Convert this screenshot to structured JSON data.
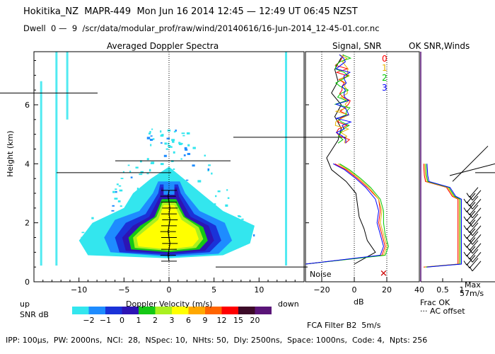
{
  "header": {
    "line1": "Hokitika_NZ  MAPR-449  Mon Jun 16 2014 12:45 — 12:49 UT 06:45 NZST",
    "line2": "Dwell  0 —  9  /scr/data/modular_prof/raw/wind/20140616/16-Jun-2014_12-45-01.cor.nc"
  },
  "footer": {
    "params": "IPP: 100μs,  PW: 2000ns,  NCI:  28,  NSpec: 10,  NHts: 50,  Dly: 2500ns,  Space: 1000ns,  Code: 4,  Npts: 256",
    "fca": "FCA Filter B2  5m/s"
  },
  "colorbar": {
    "label": "SNR dB",
    "ticks": [
      "−2",
      "−1",
      "0",
      "1",
      "2",
      "3",
      "6",
      "9",
      "12",
      "15",
      "20"
    ],
    "colors": [
      "#33e6ee",
      "#1e8cff",
      "#1a32d8",
      "#2d14b4",
      "#14c814",
      "#aaf020",
      "#ffff00",
      "#ffa800",
      "#ff6400",
      "#ff0000",
      "#3c0a28",
      "#5a1478"
    ]
  },
  "chart_data": [
    {
      "type": "heatmap",
      "title": "Averaged Doppler Spectra",
      "xlabel": "Doppler Velocity (m/s)",
      "ylabel": "Height (km)",
      "x_ticks": [
        "−10",
        "−5",
        "0",
        "5",
        "10"
      ],
      "y_ticks": [
        "0",
        "2",
        "4",
        "6"
      ],
      "xlim": [
        -15,
        15
      ],
      "ylim": [
        0,
        7.8
      ],
      "left_note": "up",
      "right_note": "down",
      "mean_velocity_profile": {
        "height_km": [
          0.7,
          0.9,
          1.1,
          1.3,
          1.5,
          1.7,
          1.9,
          2.1,
          2.3,
          2.5,
          2.7,
          2.9,
          3.1
        ],
        "velocity_ms": [
          0.0,
          -0.1,
          0.0,
          0.1,
          0.0,
          -0.1,
          0.0,
          0.1,
          0.0,
          0.1,
          0.0,
          -0.1,
          0.0
        ]
      }
    },
    {
      "type": "line",
      "title": "Signal, SNR",
      "xlabel": "dB",
      "x_ticks": [
        "−20",
        "0",
        "20",
        "40"
      ],
      "xlim": [
        -30,
        40
      ],
      "noise_label": "Noise",
      "legend": [
        "0",
        "1",
        "2",
        "3"
      ],
      "legend_colors": [
        "#ff0000",
        "#e6b400",
        "#00c800",
        "#0000ff"
      ],
      "series": [
        {
          "name": "Signal",
          "color": "#000000",
          "height_km": [
            0.6,
            1.0,
            1.4,
            1.8,
            2.2,
            2.6,
            3.0,
            3.4,
            3.8,
            4.2,
            4.8,
            5.2,
            5.6,
            6.0,
            6.4,
            6.8,
            7.2,
            7.6
          ],
          "db": [
            0,
            13,
            8,
            6,
            3,
            2,
            1,
            -5,
            -14,
            -17,
            -10,
            -8,
            -12,
            -8,
            -14,
            -10,
            -12,
            -8
          ]
        },
        {
          "name": "SNR 0",
          "color": "#ff0000",
          "height_km": [
            0.6,
            0.9,
            1.2,
            1.6,
            2.0,
            2.4,
            2.8,
            3.2,
            3.5,
            3.8,
            4.0
          ],
          "db": [
            -30,
            17,
            19,
            17,
            15,
            16,
            15,
            8,
            2,
            -5,
            -12
          ]
        },
        {
          "name": "SNR 1",
          "color": "#e6b400",
          "height_km": [
            0.6,
            0.9,
            1.2,
            1.6,
            2.0,
            2.4,
            2.8,
            3.2,
            3.5,
            3.8,
            4.0
          ],
          "db": [
            -30,
            18,
            20,
            18,
            16,
            17,
            15,
            9,
            3,
            -4,
            -10
          ]
        },
        {
          "name": "SNR 2",
          "color": "#00c800",
          "height_km": [
            0.6,
            0.9,
            1.2,
            1.6,
            2.0,
            2.4,
            2.8,
            3.2,
            3.5,
            3.8,
            4.0
          ],
          "db": [
            -30,
            19,
            21,
            19,
            18,
            18,
            16,
            10,
            4,
            -3,
            -9
          ]
        },
        {
          "name": "SNR 3",
          "color": "#0000ff",
          "height_km": [
            0.6,
            0.9,
            1.2,
            1.6,
            2.0,
            2.4,
            2.8,
            3.2,
            3.5,
            3.8,
            4.0
          ],
          "db": [
            -30,
            16,
            18,
            16,
            14,
            15,
            13,
            7,
            1,
            -6,
            -13
          ]
        }
      ]
    },
    {
      "type": "line",
      "title": "OK SNR,Winds",
      "xlabel": "Frac OK",
      "x_ticks": [
        "0.5",
        "1"
      ],
      "xlim": [
        0,
        1
      ],
      "note": "··· AC offset",
      "max_wind_label": "Max",
      "max_wind_value": "57m/s",
      "series": [
        {
          "name": "Frac OK",
          "color": "#0000ff",
          "height_km": [
            0.5,
            0.6,
            1.0,
            2.0,
            2.8,
            2.9,
            3.2,
            3.4,
            3.6,
            4.0
          ],
          "frac": [
            0.0,
            0.9,
            0.9,
            0.9,
            0.9,
            0.75,
            0.6,
            0.05,
            0.02,
            0.0
          ]
        }
      ]
    }
  ]
}
